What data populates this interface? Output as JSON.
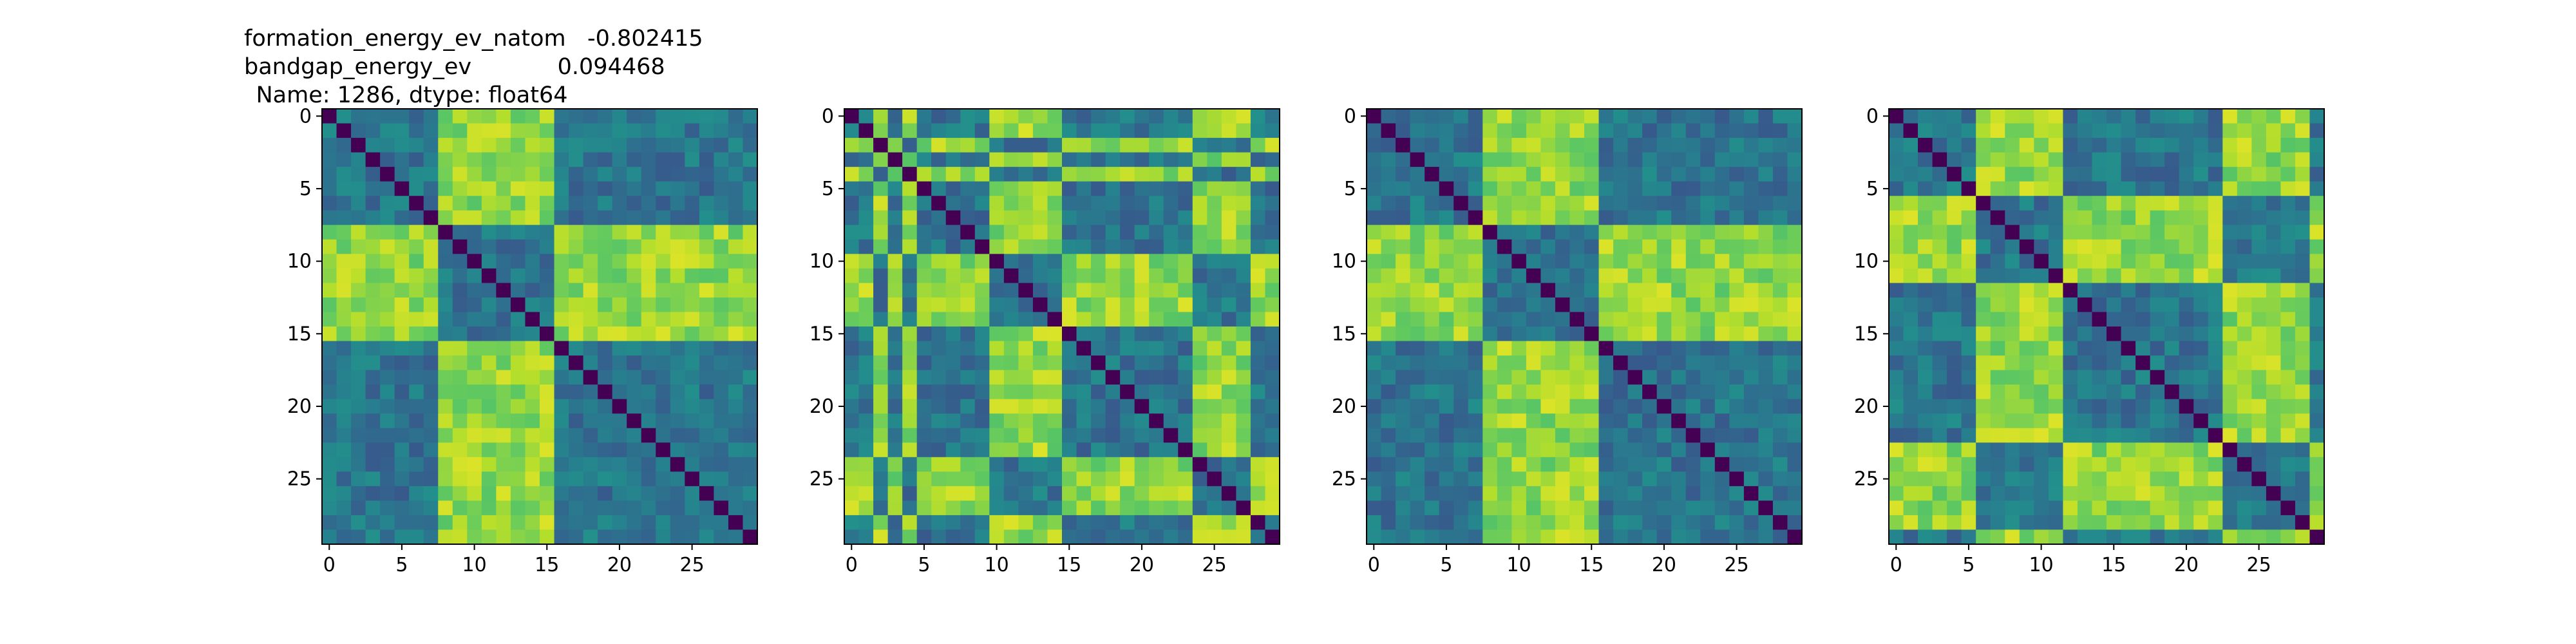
{
  "figure": {
    "title_lines": [
      "formation_energy_ev_natom   -0.802415",
      "bandgap_energy_ev            0.094468",
      "Name: 1286, dtype: float64"
    ]
  },
  "chart_data": [
    {
      "type": "heatmap",
      "title": "formation_energy_ev_natom   -0.802415\nbandgap_energy_ev            0.094468\nName: 1286, dtype: float64",
      "colormap": "viridis",
      "grid": false,
      "n": 30,
      "xlim": [
        -0.5,
        29.5
      ],
      "ylim": [
        29.5,
        -0.5
      ],
      "xticks": [
        0,
        5,
        10,
        15,
        20,
        25
      ],
      "yticks": [
        0,
        5,
        10,
        15,
        20,
        25
      ],
      "xtick_labels": [
        "0",
        "5",
        "10",
        "15",
        "20",
        "25"
      ],
      "ytick_labels": [
        "0",
        "5",
        "10",
        "15",
        "20",
        "25"
      ],
      "group_labels": [
        0,
        0,
        0,
        0,
        0,
        0,
        0,
        0,
        1,
        1,
        1,
        1,
        1,
        1,
        1,
        1,
        0,
        0,
        0,
        0,
        0,
        0,
        0,
        0,
        0,
        0,
        0,
        0,
        0,
        0
      ],
      "structure": "diagonal = 0 (dark purple); strong yellow off-diagonal blocks between rows 8-15 and columns 0-7 (and symmetric columns 8-15, rows 0-7); weaker green bands elsewhere"
    },
    {
      "type": "heatmap",
      "title": "",
      "colormap": "viridis",
      "grid": false,
      "n": 30,
      "xlim": [
        -0.5,
        29.5
      ],
      "ylim": [
        29.5,
        -0.5
      ],
      "xticks": [
        0,
        5,
        10,
        15,
        20,
        25
      ],
      "yticks": [
        0,
        5,
        10,
        15,
        20,
        25
      ],
      "xtick_labels": [
        "0",
        "5",
        "10",
        "15",
        "20",
        "25"
      ],
      "ytick_labels": [
        "0",
        "5",
        "10",
        "15",
        "20",
        "25"
      ],
      "group_labels": [
        0,
        0,
        1,
        0,
        1,
        0,
        0,
        0,
        0,
        0,
        1,
        1,
        1,
        1,
        1,
        0,
        0,
        0,
        0,
        0,
        0,
        0,
        0,
        0,
        1,
        1,
        1,
        1,
        0,
        0
      ],
      "structure": "diagonal = 0; bright cross-bands at columns/rows 2, 4, 10-14 and 24-27"
    },
    {
      "type": "heatmap",
      "title": "",
      "colormap": "viridis",
      "grid": false,
      "n": 30,
      "xlim": [
        -0.5,
        29.5
      ],
      "ylim": [
        29.5,
        -0.5
      ],
      "xticks": [
        0,
        5,
        10,
        15,
        20,
        25
      ],
      "yticks": [
        0,
        5,
        10,
        15,
        20,
        25
      ],
      "xtick_labels": [
        "0",
        "5",
        "10",
        "15",
        "20",
        "25"
      ],
      "ytick_labels": [
        "0",
        "5",
        "10",
        "15",
        "20",
        "25"
      ],
      "group_labels": [
        0,
        0,
        0,
        0,
        0,
        0,
        0,
        0,
        1,
        1,
        1,
        1,
        1,
        1,
        1,
        1,
        0,
        0,
        0,
        0,
        0,
        0,
        0,
        0,
        0,
        0,
        0,
        0,
        0,
        0
      ],
      "structure": "diagonal = 0; yellow blocks between rows 0-7 and columns 8-15 (symmetric)"
    },
    {
      "type": "heatmap",
      "title": "",
      "colormap": "viridis",
      "grid": false,
      "n": 30,
      "xlim": [
        -0.5,
        29.5
      ],
      "ylim": [
        29.5,
        -0.5
      ],
      "xticks": [
        0,
        5,
        10,
        15,
        20,
        25
      ],
      "yticks": [
        0,
        5,
        10,
        15,
        20,
        25
      ],
      "xtick_labels": [
        "0",
        "5",
        "10",
        "15",
        "20",
        "25"
      ],
      "ytick_labels": [
        "0",
        "5",
        "10",
        "15",
        "20",
        "25"
      ],
      "group_labels": [
        0,
        0,
        0,
        0,
        0,
        0,
        1,
        1,
        1,
        1,
        1,
        1,
        0,
        0,
        0,
        0,
        0,
        0,
        0,
        0,
        0,
        0,
        0,
        1,
        1,
        1,
        1,
        1,
        1,
        0
      ],
      "structure": "diagonal = 0; yellow blocks between rows 23-29 and columns 6-11 and between rows 6-11 and columns 23-28"
    }
  ]
}
